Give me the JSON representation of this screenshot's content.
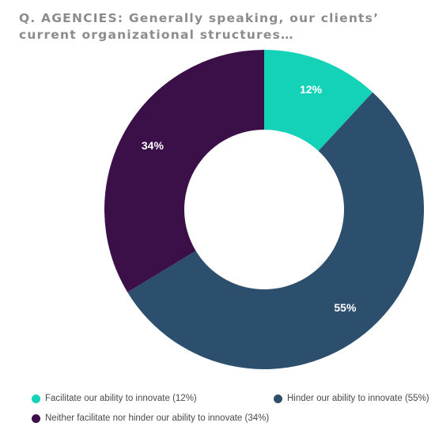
{
  "title": "Q. AGENCIES: Generally speaking, our clients’ current organizational structures…",
  "chart_data": {
    "type": "pie",
    "donut": true,
    "slices": [
      {
        "label": "Facilitate our ability to innovate (12%)",
        "value": 12,
        "display": "12%",
        "color": "#14d2b8"
      },
      {
        "label": "Hinder our ability to innovate (55%)",
        "value": 55,
        "display": "55%",
        "color": "#2c4f6e"
      },
      {
        "label": "Neither facilitate nor hinder our ability to innovate (34%)",
        "value": 34,
        "display": "34%",
        "color": "#3b1049"
      }
    ],
    "legend_position": "bottom"
  }
}
